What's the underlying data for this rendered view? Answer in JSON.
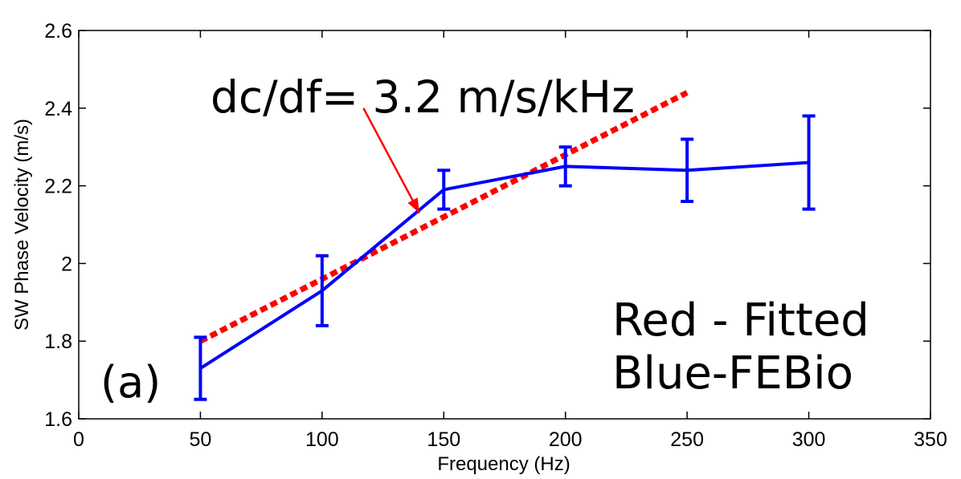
{
  "chart_data": {
    "type": "line",
    "xlabel": "Frequency (Hz)",
    "ylabel": "SW Phase Velocity (m/s)",
    "xlim": [
      0,
      350
    ],
    "ylim": [
      1.6,
      2.6
    ],
    "xticks": [
      "0",
      "50",
      "100",
      "150",
      "200",
      "250",
      "300",
      "350"
    ],
    "yticks": [
      "1.6",
      "1.8",
      "2",
      "2.2",
      "2.4",
      "2.6"
    ],
    "grid": false,
    "series": [
      {
        "name": "FEBio",
        "color": "#0000ff",
        "style": "solid",
        "x": [
          50,
          100,
          150,
          200,
          250,
          300
        ],
        "y": [
          1.73,
          1.93,
          2.19,
          2.25,
          2.24,
          2.26
        ],
        "yerr_low": [
          1.65,
          1.84,
          2.14,
          2.2,
          2.16,
          2.14
        ],
        "yerr_high": [
          1.81,
          2.02,
          2.24,
          2.3,
          2.32,
          2.38
        ]
      },
      {
        "name": "Fitted",
        "color": "#ff0000",
        "style": "dashed",
        "x": [
          50,
          250
        ],
        "y": [
          1.8,
          2.44
        ]
      }
    ],
    "annotations": {
      "slope_text": "dc/df= 3.2 m/s/kHz",
      "panel_label": "(a)",
      "legend_line1": "Red - Fitted",
      "legend_line2": "Blue-FEBio",
      "arrow_color": "#ff0000",
      "arrow_from": [
        117,
        2.4
      ],
      "arrow_to": [
        140,
        2.13
      ]
    }
  }
}
